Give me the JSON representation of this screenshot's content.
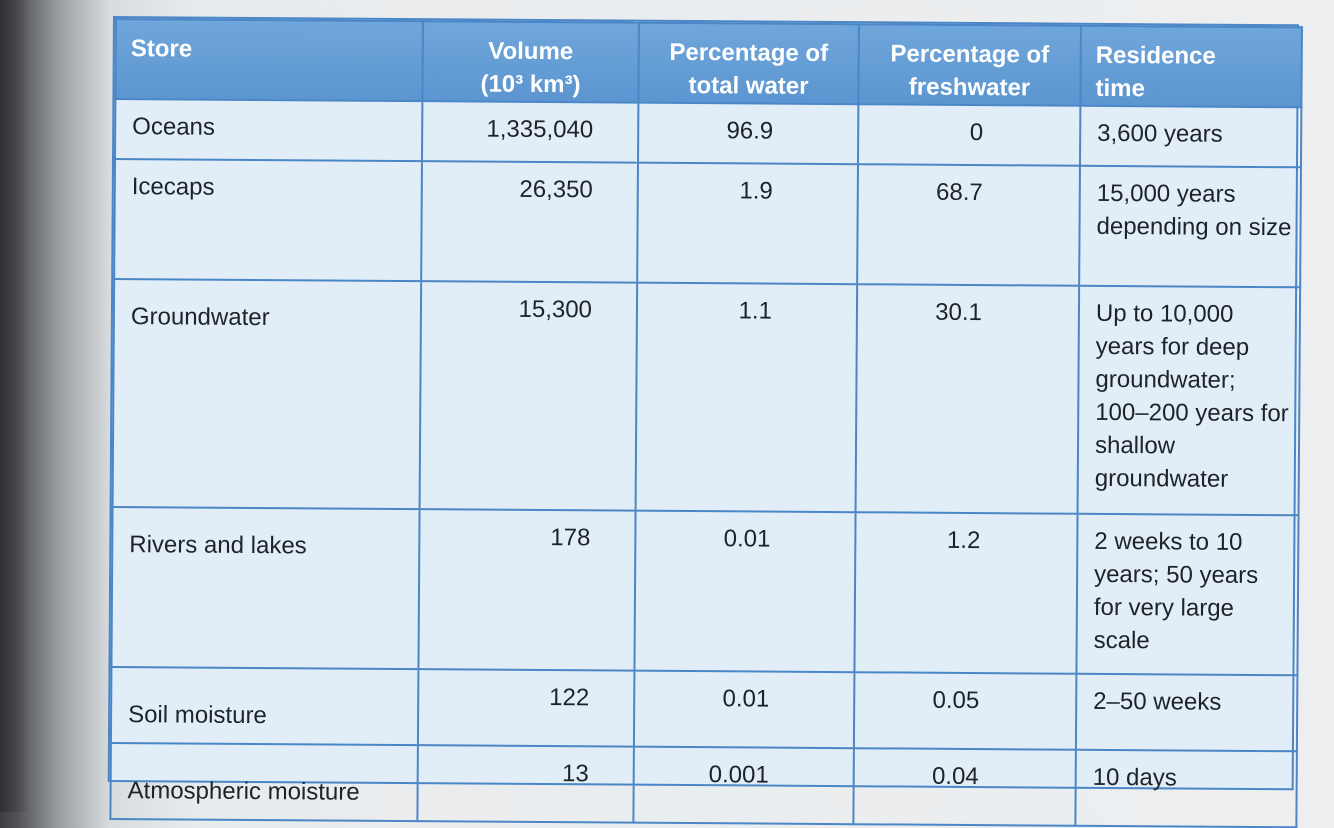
{
  "table": {
    "headers": [
      "Store",
      "Volume\n(10³ km³)",
      "Percentage of\ntotal water",
      "Percentage of\nfreshwater",
      "Residence\ntime"
    ],
    "rows": [
      {
        "store": "Oceans",
        "volume": "1,335,040",
        "pct_total": "96.9",
        "pct_fresh": "0",
        "residence": "3,600 years"
      },
      {
        "store": "Icecaps",
        "volume": "26,350",
        "pct_total": "1.9",
        "pct_fresh": "68.7",
        "residence": "15,000 years depending on size"
      },
      {
        "store": "Groundwater",
        "volume": "15,300",
        "pct_total": "1.1",
        "pct_fresh": "30.1",
        "residence": "Up to 10,000 years for deep groundwater; 100–200 years for shallow groundwater"
      },
      {
        "store": "Rivers and lakes",
        "volume": "178",
        "pct_total": "0.01",
        "pct_fresh": "1.2",
        "residence": "2 weeks to 10 years; 50 years for very large scale"
      },
      {
        "store": "Soil moisture",
        "volume": "122",
        "pct_total": "0.01",
        "pct_fresh": "0.05",
        "residence": "2–50 weeks"
      },
      {
        "store": "Atmospheric moisture",
        "volume": "13",
        "pct_total": "0.001",
        "pct_fresh": "0.04",
        "residence": "10 days"
      }
    ]
  },
  "colors": {
    "header_bg": "#5c95d0",
    "border": "#4b86c6",
    "body_bg": "#e1eef8"
  }
}
